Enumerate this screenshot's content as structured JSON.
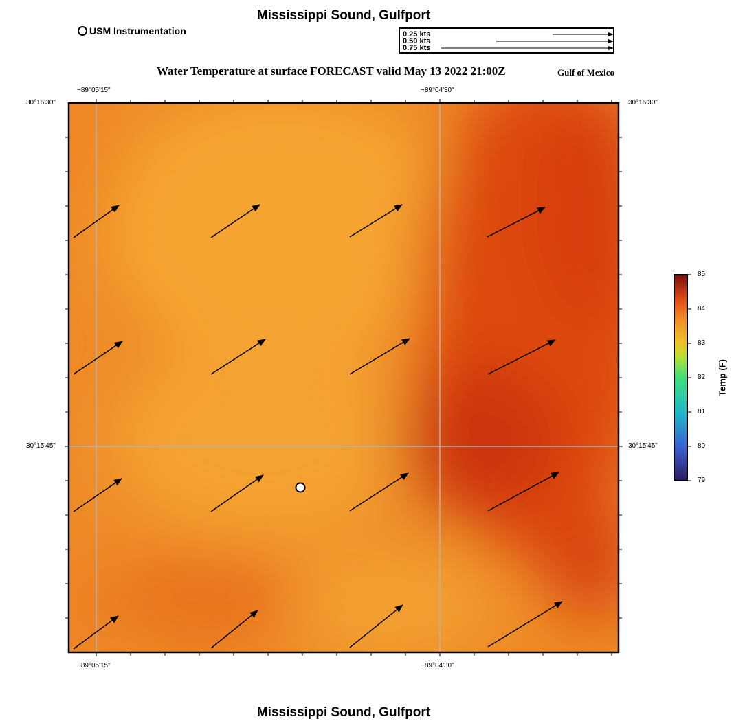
{
  "title": "Mississippi Sound, Gulfport",
  "footer_title": "Mississippi Sound, Gulfport",
  "legend": {
    "station_label": "USM Instrumentation"
  },
  "vector_scale": [
    {
      "label": "0.25 kts",
      "speed_kts": 0.25
    },
    {
      "label": "0.50 kts",
      "speed_kts": 0.5
    },
    {
      "label": "0.75 kts",
      "speed_kts": 0.75
    }
  ],
  "map_title": "Water Temperature at surface FORECAST valid May 13 2022 21:00Z",
  "region_label": "Gulf of Mexico",
  "axes": {
    "lon_ticks": [
      "−89°05'15\"",
      "−89°04'30\""
    ],
    "lat_ticks": [
      "30°16'30\"",
      "30°15'45\""
    ]
  },
  "colorbar": {
    "title": "Temp (F)",
    "min": 79,
    "max": 85,
    "ticks": [
      "85",
      "84",
      "83",
      "82",
      "81",
      "80",
      "79"
    ]
  },
  "colors": {
    "field_light": "#f39b2e",
    "field_mid": "#e96d1c",
    "field_dark": "#cf3a08",
    "arrow": "#000000",
    "grid": "#b4b4b4"
  },
  "station": {
    "name": "USM Instrumentation"
  }
}
